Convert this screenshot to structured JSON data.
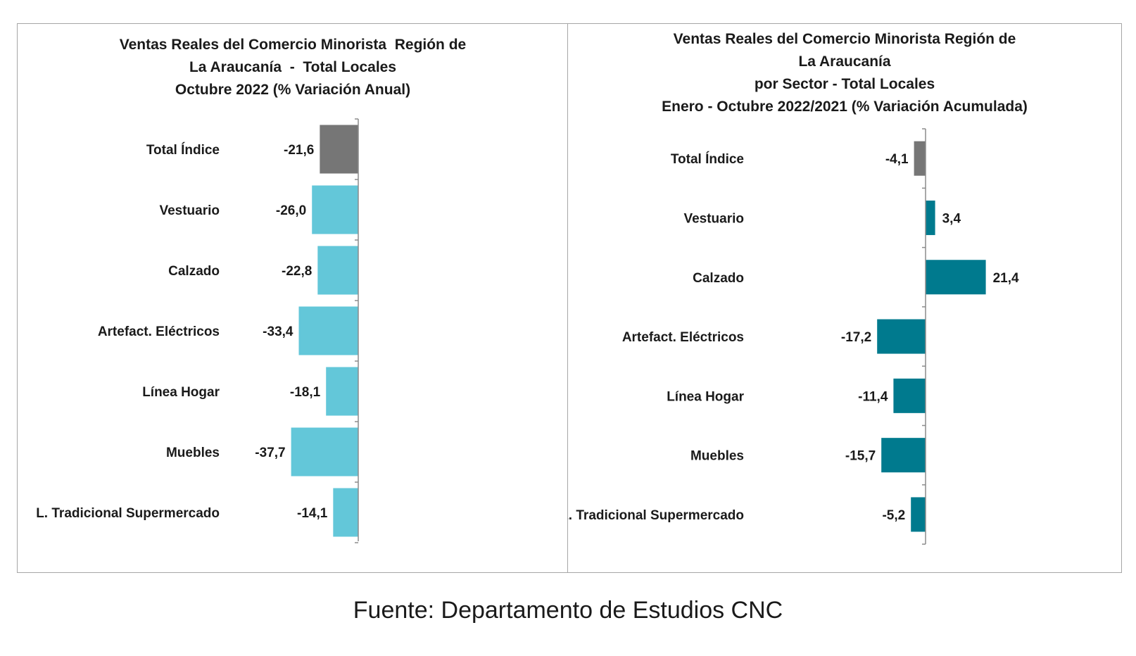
{
  "chart_data": [
    {
      "type": "bar",
      "orientation": "horizontal",
      "title_lines": [
        "Ventas Reales del Comercio Minorista  Región de",
        "La Araucanía  -  Total Locales",
        "Octubre 2022 (% Variación Anual)"
      ],
      "categories": [
        "Total Índice",
        "Vestuario",
        "Calzado",
        "Artefact. Eléctricos",
        "Línea Hogar",
        "Muebles",
        "L. Tradicional Supermercado"
      ],
      "values": [
        -21.6,
        -26.0,
        -22.8,
        -33.4,
        -18.1,
        -37.7,
        -14.1
      ],
      "value_labels": [
        "-21,6",
        "-26,0",
        "-22,8",
        "-33,4",
        "-18,1",
        "-37,7",
        "-14,1"
      ],
      "colors": [
        "#767676",
        "#63c7d9",
        "#63c7d9",
        "#63c7d9",
        "#63c7d9",
        "#63c7d9",
        "#63c7d9"
      ],
      "grid": false
    },
    {
      "type": "bar",
      "orientation": "horizontal",
      "title_lines": [
        "Ventas Reales del Comercio Minorista Región de",
        "La Araucanía",
        "por Sector - Total Locales",
        "Enero - Octubre 2022/2021 (% Variación Acumulada)"
      ],
      "categories": [
        "Total Índice",
        "Vestuario",
        "Calzado",
        "Artefact. Eléctricos",
        "Línea Hogar",
        "Muebles",
        "L. Tradicional Supermercado"
      ],
      "values": [
        -4.1,
        3.4,
        21.4,
        -17.2,
        -11.4,
        -15.7,
        -5.2
      ],
      "value_labels": [
        "-4,1",
        "3,4",
        "21,4",
        "-17,2",
        "-11,4",
        "-15,7",
        "-5,2"
      ],
      "colors": [
        "#767676",
        "#007a8e",
        "#007a8e",
        "#007a8e",
        "#007a8e",
        "#007a8e",
        "#007a8e"
      ],
      "grid": false
    }
  ],
  "source": "Fuente: Departamento de Estudios CNC"
}
